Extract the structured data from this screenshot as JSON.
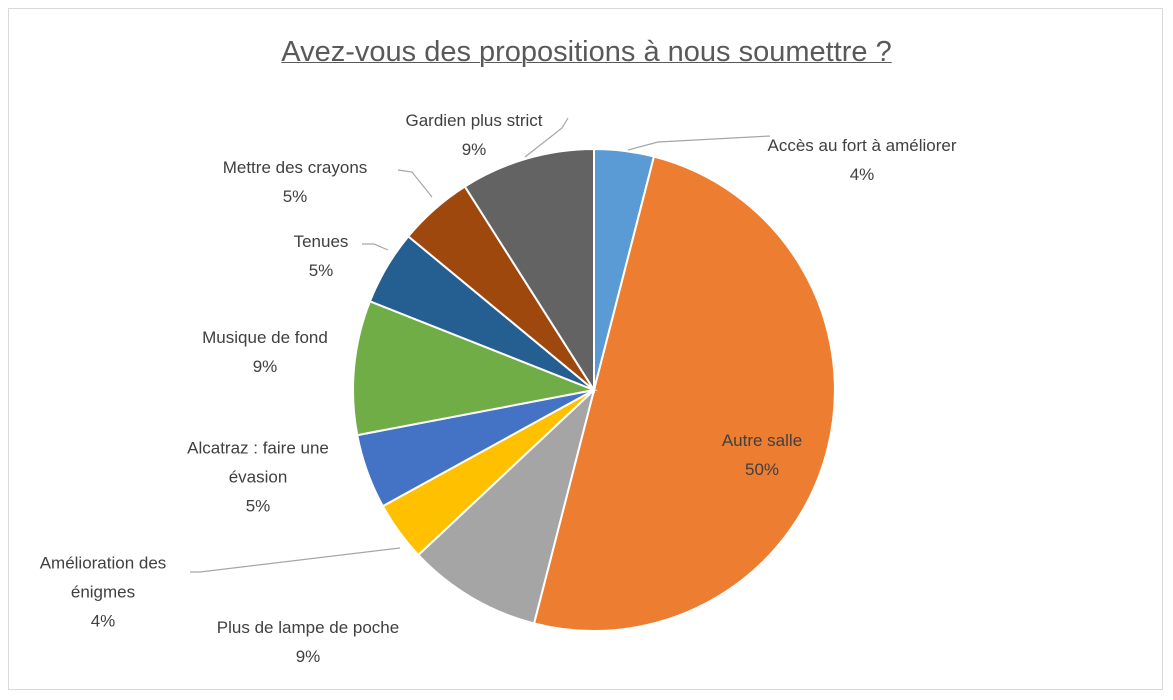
{
  "chart_data": {
    "type": "pie",
    "title": "Avez-vous des propositions à nous soumettre ?",
    "categories": [
      "Accès au fort à améliorer",
      "Autre salle",
      "Plus de lampe de poche",
      "Amélioration des énigmes",
      "Alcatraz : faire une évasion",
      "Musique de fond",
      "Tenues",
      "Mettre des crayons",
      "Gardien plus strict"
    ],
    "values": [
      4,
      50,
      9,
      4,
      5,
      9,
      5,
      5,
      9
    ],
    "value_labels": [
      "4%",
      "50%",
      "9%",
      "4%",
      "5%",
      "9%",
      "5%",
      "5%",
      "9%"
    ],
    "colors": [
      "#5b9bd5",
      "#ed7d31",
      "#a5a5a5",
      "#ffc000",
      "#4472c4",
      "#70ad47",
      "#255e91",
      "#9e480e",
      "#636363"
    ]
  }
}
